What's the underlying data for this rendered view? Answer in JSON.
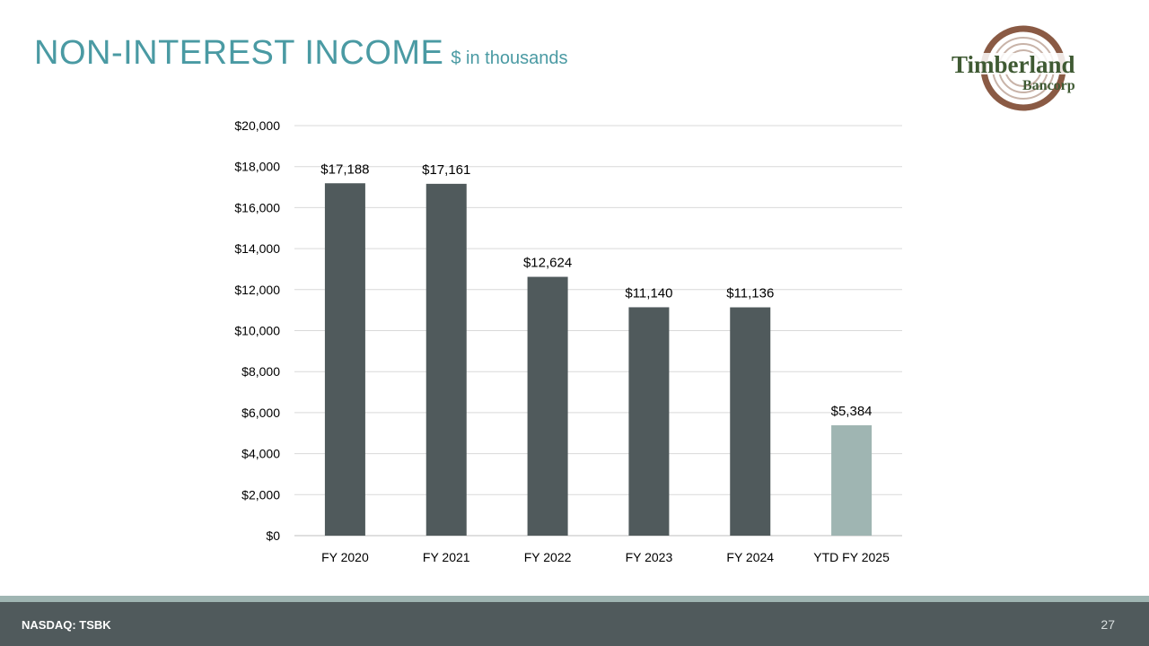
{
  "header": {
    "title": "NON-INTEREST INCOME",
    "subtitle": "$ in thousands"
  },
  "logo": {
    "line1": "Timberland",
    "line2": "Bancorp"
  },
  "footer": {
    "ticker": "NASDAQ: TSBK",
    "page_number": "27"
  },
  "colors": {
    "title": "#4a9aa3",
    "bar": "#505a5c",
    "bar_highlight": "#9fb5b2",
    "footer": "#505a5c",
    "logo_green": "#3f5a33",
    "logo_brown": "#8a5a44"
  },
  "chart_data": {
    "type": "bar",
    "title": "NON-INTEREST INCOME",
    "subtitle": "$ in thousands",
    "xlabel": "",
    "ylabel": "",
    "ylim": [
      0,
      20000
    ],
    "yticks": [
      "$0",
      "$2,000",
      "$4,000",
      "$6,000",
      "$8,000",
      "$10,000",
      "$12,000",
      "$14,000",
      "$16,000",
      "$18,000",
      "$20,000"
    ],
    "ytick_values": [
      0,
      2000,
      4000,
      6000,
      8000,
      10000,
      12000,
      14000,
      16000,
      18000,
      20000
    ],
    "grid": true,
    "categories": [
      "FY 2020",
      "FY 2021",
      "FY 2022",
      "FY 2023",
      "FY 2024",
      "YTD FY 2025"
    ],
    "values": [
      17188,
      17161,
      12624,
      11140,
      11136,
      5384
    ],
    "data_labels": [
      "$17,188",
      "$17,161",
      "$12,624",
      "$11,140",
      "$11,136",
      "$5,384"
    ],
    "highlight_index": 5
  }
}
